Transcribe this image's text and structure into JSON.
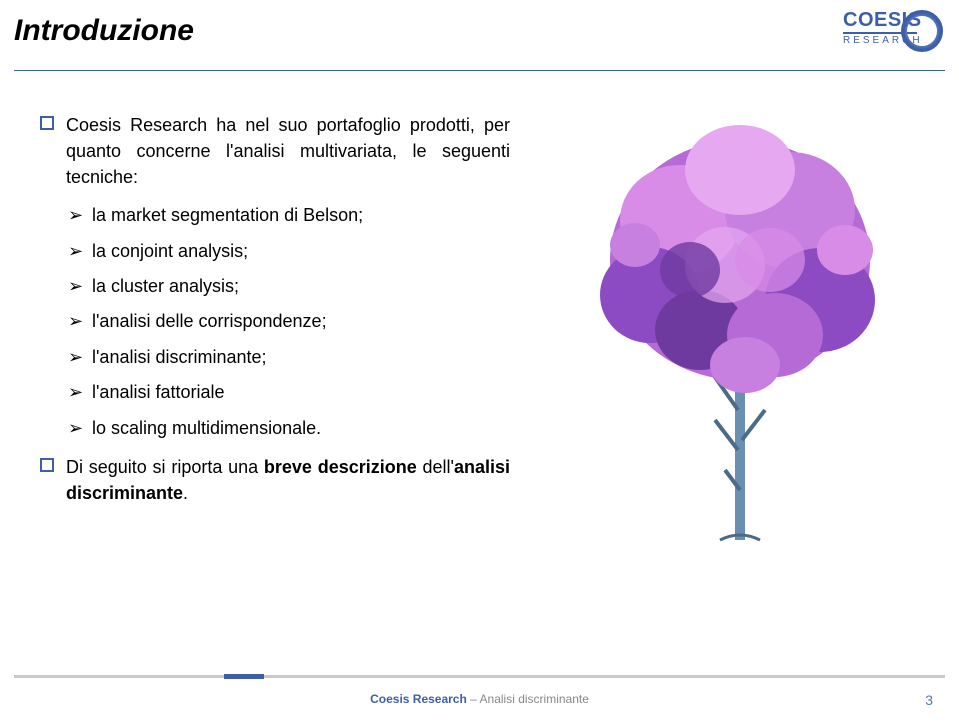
{
  "title": "Introduzione",
  "logo": {
    "main": "COESIS",
    "sub": "RESEARCH",
    "color": "#3e5fa7"
  },
  "bullets": [
    {
      "text": "Coesis Research ha nel suo portafoglio prodotti, per quanto concerne l'analisi multivariata, le seguenti tecniche:",
      "has_sub": true
    },
    {
      "text_parts": [
        "Di seguito si riporta una ",
        "breve descrizione",
        " dell'",
        "analisi discriminante",
        "."
      ],
      "bold_idx": [
        1,
        3
      ],
      "has_sub": false
    }
  ],
  "sublist": [
    "la market segmentation di Belson;",
    "la conjoint analysis;",
    "la cluster analysis;",
    "l'analisi delle corrispondenze;",
    "l'analisi discriminante;",
    "l'analisi fattoriale",
    "lo scaling multidimensionale."
  ],
  "tree": {
    "trunk_color": "#6a8fb0",
    "trunk_shadow": "#4a6c88",
    "foliage_colors": [
      "#b56ad6",
      "#d98be8",
      "#8c4bc2",
      "#e6a8f0",
      "#6f3aa0",
      "#c77fe0"
    ],
    "bg": "#ffffff"
  },
  "footer": {
    "brand": "Coesis Research",
    "sep": " – ",
    "label": "Analisi discriminante"
  },
  "page": "3"
}
